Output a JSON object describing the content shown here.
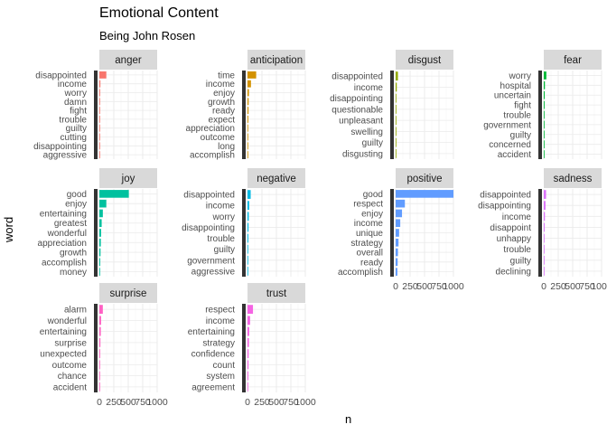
{
  "chart_data": {
    "type": "bar",
    "orientation": "horizontal",
    "title": "Emotional Content",
    "subtitle": "Being John Rosen",
    "xlabel": "n",
    "ylabel": "word",
    "xlim": [
      0,
      1000
    ],
    "x_ticks": [
      0,
      250,
      500,
      750,
      1000
    ],
    "x_tick_labels": [
      "0",
      "250",
      "500",
      "750",
      "1000"
    ],
    "grid": true,
    "facets": [
      {
        "name": "anger",
        "color": "#F8766D",
        "words": [
          "disappointed",
          "income",
          "worry",
          "damn",
          "fight",
          "trouble",
          "guilty",
          "cutting",
          "disappointing",
          "aggressive"
        ],
        "values": [
          120,
          18,
          14,
          12,
          10,
          9,
          8,
          7,
          6,
          5
        ]
      },
      {
        "name": "anticipation",
        "color": "#D39200",
        "words": [
          "time",
          "income",
          "enjoy",
          "growth",
          "ready",
          "expect",
          "appreciation",
          "outcome",
          "long",
          "accomplish"
        ],
        "values": [
          150,
          60,
          25,
          20,
          18,
          15,
          12,
          10,
          9,
          8
        ]
      },
      {
        "name": "disgust",
        "color": "#93AA00",
        "words": [
          "disappointed",
          "income",
          "disappointing",
          "questionable",
          "unpleasant",
          "swelling",
          "guilty",
          "disgusting"
        ],
        "values": [
          40,
          20,
          12,
          10,
          8,
          6,
          5,
          4
        ]
      },
      {
        "name": "fear",
        "color": "#00BA38",
        "words": [
          "worry",
          "hospital",
          "uncertain",
          "fight",
          "trouble",
          "government",
          "guilty",
          "concerned",
          "accident"
        ],
        "values": [
          45,
          20,
          16,
          14,
          12,
          10,
          9,
          8,
          7
        ]
      },
      {
        "name": "joy",
        "color": "#00C19F",
        "words": [
          "good",
          "enjoy",
          "entertaining",
          "greatest",
          "wonderful",
          "appreciation",
          "growth",
          "accomplish",
          "money"
        ],
        "values": [
          510,
          120,
          60,
          40,
          30,
          25,
          20,
          15,
          12
        ]
      },
      {
        "name": "negative",
        "color": "#00B9E3",
        "words": [
          "disappointed",
          "income",
          "worry",
          "disappointing",
          "trouble",
          "guilty",
          "government",
          "aggressive"
        ],
        "values": [
          55,
          30,
          22,
          18,
          15,
          12,
          10,
          8
        ]
      },
      {
        "name": "positive",
        "color": "#619CFF",
        "words": [
          "good",
          "respect",
          "enjoy",
          "income",
          "unique",
          "strategy",
          "overall",
          "ready",
          "accomplish"
        ],
        "values": [
          1000,
          160,
          110,
          80,
          60,
          50,
          40,
          35,
          30
        ]
      },
      {
        "name": "sadness",
        "color": "#DB72FB",
        "words": [
          "disappointed",
          "disappointing",
          "income",
          "disappoint",
          "unhappy",
          "trouble",
          "guilty",
          "declining"
        ],
        "values": [
          40,
          30,
          20,
          15,
          12,
          10,
          8,
          6
        ]
      },
      {
        "name": "surprise",
        "color": "#FF61C3",
        "words": [
          "alarm",
          "wonderful",
          "entertaining",
          "surprise",
          "unexpected",
          "outcome",
          "chance",
          "accident"
        ],
        "values": [
          60,
          30,
          25,
          18,
          14,
          12,
          10,
          8
        ]
      },
      {
        "name": "trust",
        "color": "#F564E3",
        "words": [
          "respect",
          "income",
          "entertaining",
          "strategy",
          "confidence",
          "count",
          "system",
          "agreement"
        ],
        "values": [
          95,
          45,
          30,
          25,
          20,
          18,
          15,
          12
        ]
      }
    ]
  }
}
